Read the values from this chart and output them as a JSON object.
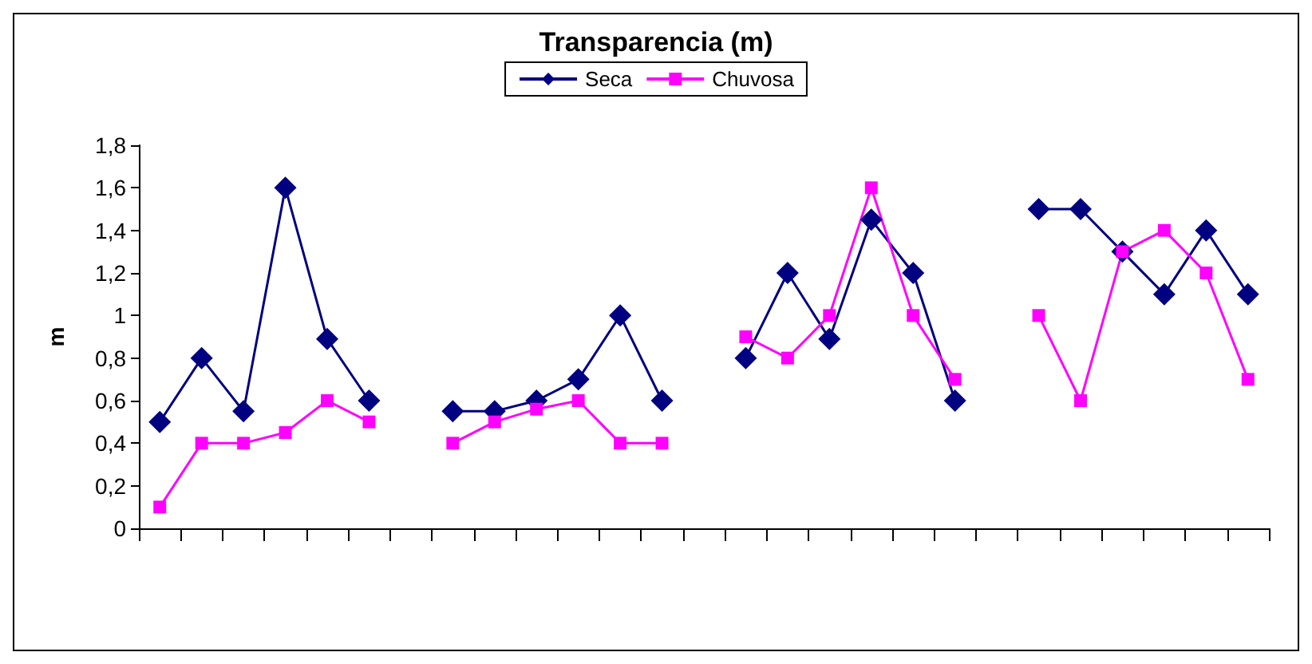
{
  "chart_data": {
    "type": "line",
    "title": "Transparencia (m)",
    "ylabel": "m",
    "categories": [
      null,
      null,
      null,
      null,
      null,
      null,
      null,
      null,
      null,
      null,
      null,
      null,
      null,
      null,
      null,
      null,
      null,
      null,
      null,
      null,
      null,
      null,
      null,
      null,
      null,
      null,
      null
    ],
    "series": [
      {
        "name": "Seca",
        "color": "#000080",
        "marker": "diamond",
        "values": [
          0.5,
          0.8,
          0.55,
          1.6,
          0.89,
          0.6,
          null,
          0.55,
          0.55,
          0.6,
          0.7,
          1.0,
          0.6,
          null,
          0.8,
          1.2,
          0.89,
          1.45,
          1.2,
          0.6,
          null,
          1.5,
          1.5,
          1.3,
          1.1,
          1.4,
          1.1
        ]
      },
      {
        "name": "Chuvosa",
        "color": "#ff00ff",
        "marker": "square",
        "values": [
          0.1,
          0.4,
          0.4,
          0.45,
          0.6,
          0.5,
          null,
          0.4,
          0.5,
          0.56,
          0.6,
          0.4,
          0.4,
          null,
          0.9,
          0.8,
          1.0,
          1.6,
          1.0,
          0.7,
          null,
          1.0,
          0.6,
          1.3,
          1.4,
          1.2,
          0.7
        ]
      }
    ],
    "ylim": [
      0,
      1.8
    ],
    "yticks": [
      0,
      {
        "value": 0.2,
        "label": "0,2"
      },
      {
        "value": 0.4,
        "label": "0,4"
      },
      {
        "value": 0.6,
        "label": "0,6"
      },
      {
        "value": 0.8,
        "label": "0,8"
      },
      1,
      {
        "value": 1.2,
        "label": "1,2"
      },
      {
        "value": 1.4,
        "label": "1,4"
      },
      {
        "value": 1.6,
        "label": "1,6"
      },
      {
        "value": 1.8,
        "label": "1,8"
      }
    ],
    "grid": false,
    "legend": "top"
  }
}
